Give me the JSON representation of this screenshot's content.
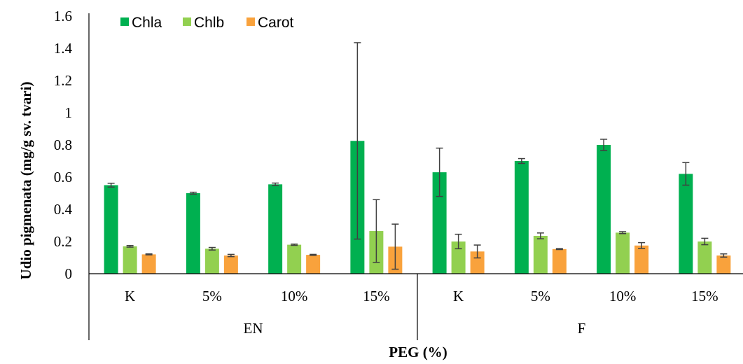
{
  "chart_data": {
    "type": "bar",
    "ylabel": "Udio pigmenata (mg/g sv. tvari)",
    "xlabel": "PEG (%)",
    "ylim": [
      0,
      1.6
    ],
    "yticks": [
      "0",
      "0.2",
      "0.4",
      "0.6",
      "0.8",
      "1",
      "1.2",
      "1.4",
      "1.6"
    ],
    "yticks_values": [
      0,
      0.2,
      0.4,
      0.6,
      0.8,
      1.0,
      1.2,
      1.4,
      1.6
    ],
    "groups": [
      {
        "label": "EN",
        "categories": [
          "K",
          "5%",
          "10%",
          "15%"
        ]
      },
      {
        "label": "F",
        "categories": [
          "K",
          "5%",
          "10%",
          "15%"
        ]
      }
    ],
    "legend_position": "top-left",
    "grid": false,
    "series": [
      {
        "name": "Chla",
        "color": "#00b050",
        "values": [
          0.55,
          0.5,
          0.555,
          0.825,
          0.63,
          0.7,
          0.8,
          0.62
        ],
        "errors": [
          0.012,
          0.006,
          0.008,
          0.61,
          0.15,
          0.015,
          0.035,
          0.07
        ]
      },
      {
        "name": "Chlb",
        "color": "#92d050",
        "values": [
          0.17,
          0.155,
          0.18,
          0.265,
          0.2,
          0.235,
          0.255,
          0.2
        ],
        "errors": [
          0.005,
          0.008,
          0.004,
          0.195,
          0.045,
          0.018,
          0.006,
          0.02
        ]
      },
      {
        "name": "Carot",
        "color": "#f9a23c",
        "values": [
          0.12,
          0.113,
          0.117,
          0.168,
          0.138,
          0.153,
          0.175,
          0.113
        ],
        "errors": [
          0.003,
          0.007,
          0.003,
          0.14,
          0.04,
          0.003,
          0.018,
          0.01
        ]
      }
    ]
  }
}
